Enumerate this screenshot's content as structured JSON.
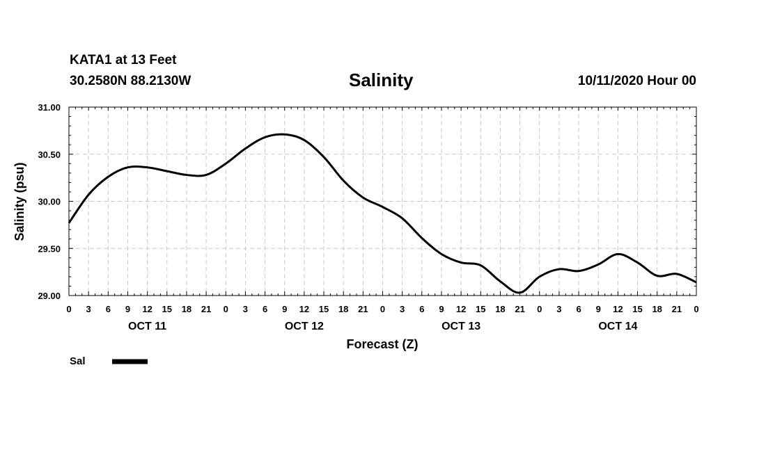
{
  "header": {
    "station": "KATA1 at 13 Feet",
    "coords": "30.2580N 88.2130W",
    "title": "Salinity",
    "timestamp": "10/11/2020 Hour 00"
  },
  "colors": {
    "line": "#000000",
    "grid": "#c8c8c8",
    "frame": "#000000"
  },
  "chart_data": {
    "type": "line",
    "title": "Salinity",
    "xlabel": "Forecast (Z)",
    "ylabel": "Salinity (psu)",
    "xlim": [
      0,
      96
    ],
    "ylim": [
      29.0,
      31.0
    ],
    "grid": true,
    "xtick_hours": [
      0,
      3,
      6,
      9,
      12,
      15,
      18,
      21,
      24,
      27,
      30,
      33,
      36,
      39,
      42,
      45,
      48,
      51,
      54,
      57,
      60,
      63,
      66,
      69,
      72,
      75,
      78,
      81,
      84,
      87,
      90,
      93,
      96
    ],
    "xtick_labels": [
      "0",
      "3",
      "6",
      "9",
      "12",
      "15",
      "18",
      "21",
      "0",
      "3",
      "6",
      "9",
      "12",
      "15",
      "18",
      "21",
      "0",
      "3",
      "6",
      "9",
      "12",
      "15",
      "18",
      "21",
      "0",
      "3",
      "6",
      "9",
      "12",
      "15",
      "18",
      "21",
      "0"
    ],
    "yticks": [
      29.0,
      29.5,
      30.0,
      30.5,
      31.0
    ],
    "ytick_labels": [
      "29.00",
      "29.50",
      "30.00",
      "30.50",
      "31.00"
    ],
    "day_labels": [
      {
        "label": "OCT 11",
        "hour": 12
      },
      {
        "label": "OCT 12",
        "hour": 36
      },
      {
        "label": "OCT 13",
        "hour": 60
      },
      {
        "label": "OCT 14",
        "hour": 84
      }
    ],
    "legend": [
      {
        "name": "Sal",
        "position": "bottom-left"
      }
    ],
    "series": [
      {
        "name": "Sal",
        "x": [
          0,
          3,
          6,
          9,
          12,
          15,
          18,
          21,
          24,
          27,
          30,
          33,
          36,
          39,
          42,
          45,
          48,
          51,
          54,
          57,
          60,
          63,
          66,
          69,
          72,
          75,
          78,
          81,
          84,
          87,
          90,
          93,
          96
        ],
        "values": [
          29.77,
          30.07,
          30.26,
          30.36,
          30.36,
          30.32,
          30.28,
          30.28,
          30.4,
          30.56,
          30.68,
          30.71,
          30.65,
          30.47,
          30.22,
          30.04,
          29.94,
          29.82,
          29.61,
          29.44,
          29.35,
          29.32,
          29.15,
          29.03,
          29.2,
          29.28,
          29.26,
          29.33,
          29.44,
          29.35,
          29.21,
          29.23,
          29.14
        ]
      }
    ]
  }
}
